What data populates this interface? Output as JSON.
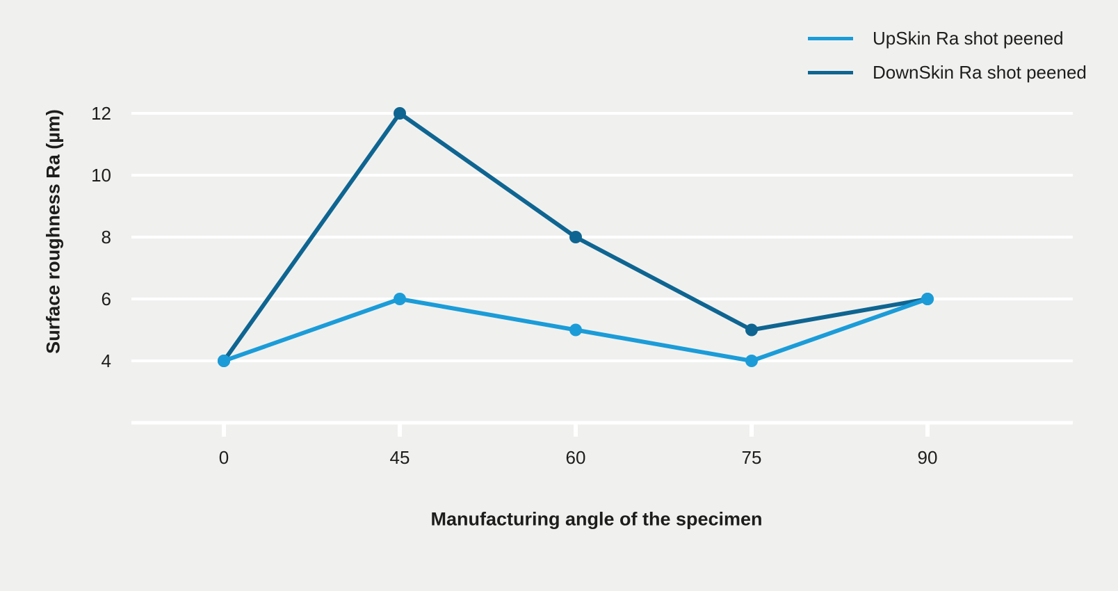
{
  "page": {
    "background_color": "#f0f1ef",
    "text_color": "#1d1d1b",
    "gridline_color": "#ffffff"
  },
  "legend": {
    "position": "top-right",
    "items": [
      {
        "label": "UpSkin Ra shot peened",
        "color": "#1b9cd8"
      },
      {
        "label": "DownSkin Ra shot peened",
        "color": "#0f6591"
      }
    ]
  },
  "chart_data": {
    "type": "line",
    "categories": [
      0,
      45,
      60,
      75,
      90
    ],
    "xtick_labels": [
      "0",
      "45",
      "60",
      "75",
      "90"
    ],
    "yticks": [
      12,
      10,
      8,
      6,
      4
    ],
    "ytick_labels": [
      "12",
      "10",
      "8",
      "6",
      "4"
    ],
    "series": [
      {
        "name": "UpSkin Ra shot peened",
        "color": "#1b9cd8",
        "values": [
          4,
          6,
          5,
          4,
          6
        ]
      },
      {
        "name": "DownSkin Ra shot peened",
        "color": "#0f6591",
        "values": [
          4,
          12,
          8,
          5,
          6
        ]
      }
    ],
    "title": "",
    "xlabel": "Manufacturing angle of the specimen",
    "ylabel": "Surface roughness Ra (µm)",
    "ylim": [
      2,
      13
    ],
    "grid": "horizontal-white",
    "legend_position": "top-right",
    "marker": "circle"
  }
}
